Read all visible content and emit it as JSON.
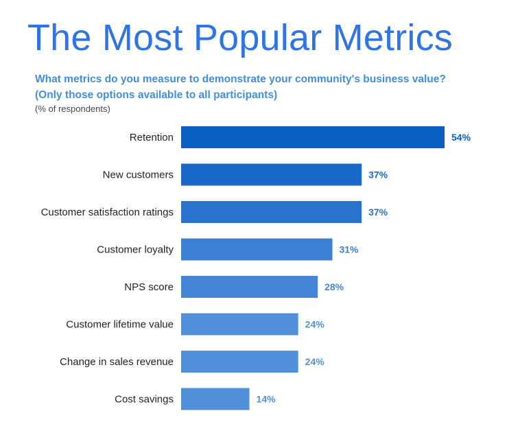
{
  "title": "The Most Popular Metrics",
  "subtitle_line1": "What metrics do you measure to demonstrate your community's business value?",
  "subtitle_line2": "(Only those options available to all participants)",
  "note": "(% of respondents)",
  "colors": {
    "title": "#2f74e6",
    "subtitle": "#3f8fe0",
    "bars": [
      "#0a5fc0",
      "#1a69c8",
      "#2a73cc",
      "#3a7fd2",
      "#4585d6",
      "#5190d8",
      "#5190d8",
      "#5190d8"
    ]
  },
  "chart_data": {
    "type": "bar",
    "orientation": "horizontal",
    "categories": [
      "Retention",
      "New customers",
      "Customer satisfaction ratings",
      "Customer loyalty",
      "NPS score",
      "Customer lifetime value",
      "Change in sales revenue",
      "Cost savings"
    ],
    "values": [
      54,
      37,
      37,
      31,
      28,
      24,
      24,
      14
    ],
    "value_labels": [
      "54%",
      "37%",
      "37%",
      "31%",
      "28%",
      "24%",
      "24%",
      "14%"
    ],
    "unit": "%",
    "title": "The Most Popular Metrics",
    "xlabel": "",
    "ylabel": "",
    "grid": false,
    "legend": "none"
  }
}
